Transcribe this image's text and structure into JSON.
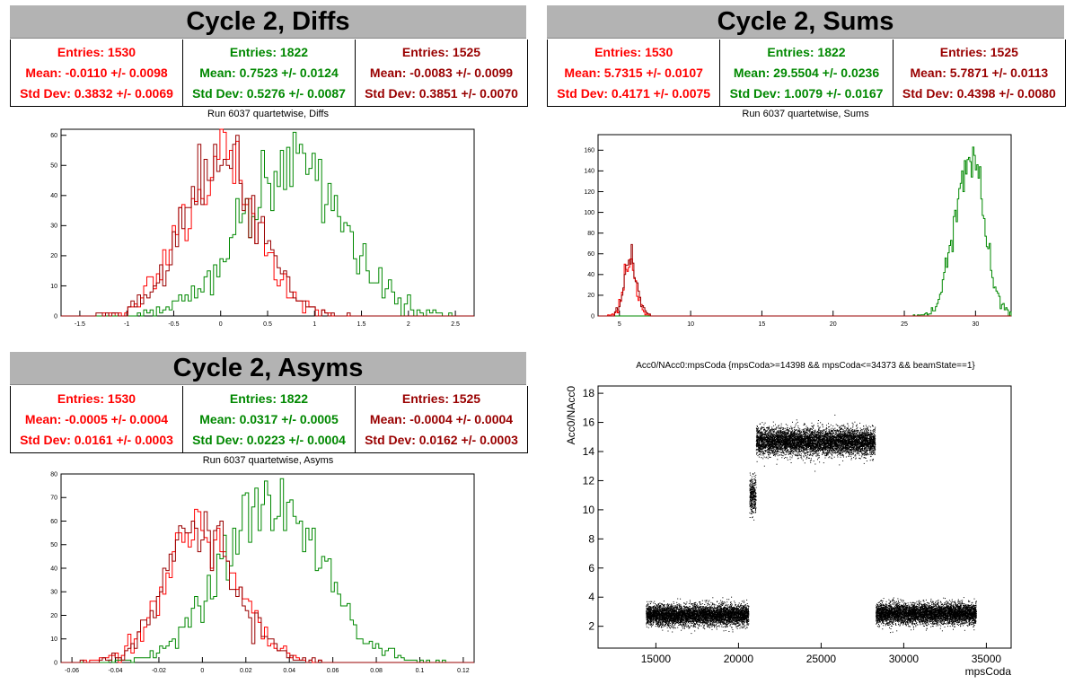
{
  "panels": {
    "diffs": {
      "header": "Cycle 2, Diffs",
      "stats": [
        {
          "entries": "Entries: 1530",
          "mean": "Mean: -0.0110 +/- 0.0098",
          "std": "Std Dev: 0.3832 +/- 0.0069",
          "color": "#ff0000"
        },
        {
          "entries": "Entries: 1822",
          "mean": "Mean: 0.7523 +/- 0.0124",
          "std": "Std Dev: 0.5276 +/- 0.0087",
          "color": "#008800"
        },
        {
          "entries": "Entries: 1525",
          "mean": "Mean: -0.0083 +/- 0.0099",
          "std": "Std Dev: 0.3851 +/- 0.0070",
          "color": "#990000"
        }
      ],
      "plot_title": "Run 6037 quartetwise, Diffs"
    },
    "sums": {
      "header": "Cycle 2, Sums",
      "stats": [
        {
          "entries": "Entries: 1530",
          "mean": "Mean: 5.7315 +/- 0.0107",
          "std": "Std Dev: 0.4171 +/- 0.0075",
          "color": "#ff0000"
        },
        {
          "entries": "Entries: 1822",
          "mean": "Mean: 29.5504 +/- 0.0236",
          "std": "Std Dev: 1.0079 +/- 0.0167",
          "color": "#008800"
        },
        {
          "entries": "Entries: 1525",
          "mean": "Mean: 5.7871 +/- 0.0113",
          "std": "Std Dev: 0.4398 +/- 0.0080",
          "color": "#990000"
        }
      ],
      "plot_title": "Run 6037 quartetwise, Sums"
    },
    "asyms": {
      "header": "Cycle 2, Asyms",
      "stats": [
        {
          "entries": "Entries: 1530",
          "mean": "Mean: -0.0005 +/- 0.0004",
          "std": "Std Dev: 0.0161 +/- 0.0003",
          "color": "#ff0000"
        },
        {
          "entries": "Entries: 1822",
          "mean": "Mean: 0.0317 +/- 0.0005",
          "std": "Std Dev: 0.0223 +/- 0.0004",
          "color": "#008800"
        },
        {
          "entries": "Entries: 1525",
          "mean": "Mean: -0.0004 +/- 0.0004",
          "std": "Std Dev: 0.0162 +/- 0.0003",
          "color": "#990000"
        }
      ],
      "plot_title": "Run 6037 quartetwise, Asyms"
    },
    "scatter": {
      "plot_title": "Acc0/NAcc0:mpsCoda {mpsCoda>=14398 && mpsCoda<=34373 && beamState==1}"
    }
  },
  "chart_data": [
    {
      "type": "histogram",
      "title": "Run 6037 quartetwise, Diffs",
      "xlim": [
        -1.7,
        2.7
      ],
      "ylim": [
        0,
        62
      ],
      "xticks": [
        -1.5,
        -1,
        -0.5,
        0,
        0.5,
        1,
        1.5,
        2,
        2.5
      ],
      "xtick_labels": [
        "-1.5",
        "-1",
        "-0.5",
        "0",
        "0.5",
        "1",
        "1.5",
        "2",
        "2.5"
      ],
      "yticks": [
        0,
        10,
        20,
        30,
        40,
        50,
        60
      ],
      "ytick_labels": [
        "0",
        "10",
        "20",
        "30",
        "40",
        "50",
        "60"
      ],
      "series": [
        {
          "color": "#ff0000",
          "entries": 1530,
          "mean": -0.011,
          "std": 0.3832,
          "peak": 60
        },
        {
          "color": "#008800",
          "entries": 1822,
          "mean": 0.7523,
          "std": 0.5276,
          "peak": 58
        },
        {
          "color": "#990000",
          "entries": 1525,
          "mean": -0.0083,
          "std": 0.3851,
          "peak": 58
        }
      ]
    },
    {
      "type": "histogram",
      "title": "Run 6037 quartetwise, Sums",
      "xlim": [
        3.5,
        32.5
      ],
      "ylim": [
        0,
        175
      ],
      "xticks": [
        5,
        10,
        15,
        20,
        25,
        30
      ],
      "xtick_labels": [
        "5",
        "10",
        "15",
        "20",
        "25",
        "30"
      ],
      "yticks": [
        0,
        20,
        40,
        60,
        80,
        100,
        120,
        140,
        160
      ],
      "ytick_labels": [
        "0",
        "20",
        "40",
        "60",
        "80",
        "100",
        "120",
        "140",
        "160"
      ],
      "series": [
        {
          "color": "#ff0000",
          "entries": 1530,
          "mean": 5.7315,
          "std": 0.4171,
          "peak": 60
        },
        {
          "color": "#008800",
          "entries": 1822,
          "mean": 29.5504,
          "std": 1.0079,
          "peak": 170
        },
        {
          "color": "#990000",
          "entries": 1525,
          "mean": 5.7871,
          "std": 0.4398,
          "peak": 62
        }
      ]
    },
    {
      "type": "histogram",
      "title": "Run 6037 quartetwise, Asyms",
      "xlim": [
        -0.065,
        0.125
      ],
      "ylim": [
        0,
        80
      ],
      "xticks": [
        -0.06,
        -0.04,
        -0.02,
        0,
        0.02,
        0.04,
        0.06,
        0.08,
        0.1,
        0.12
      ],
      "xtick_labels": [
        "-0.06",
        "-0.04",
        "-0.02",
        "0",
        "0.02",
        "0.04",
        "0.06",
        "0.08",
        "0.1",
        "0.12"
      ],
      "yticks": [
        0,
        10,
        20,
        30,
        40,
        50,
        60,
        70,
        80
      ],
      "ytick_labels": [
        "0",
        "10",
        "20",
        "30",
        "40",
        "50",
        "60",
        "70",
        "80"
      ],
      "series": [
        {
          "color": "#ff0000",
          "entries": 1530,
          "mean": -0.0005,
          "std": 0.0161,
          "peak": 68
        },
        {
          "color": "#008800",
          "entries": 1822,
          "mean": 0.0317,
          "std": 0.0223,
          "peak": 77
        },
        {
          "color": "#990000",
          "entries": 1525,
          "mean": -0.0004,
          "std": 0.0162,
          "peak": 65
        }
      ]
    },
    {
      "type": "scatter",
      "title": "Acc0/NAcc0:mpsCoda {mpsCoda>=14398 && mpsCoda<=34373 && beamState==1}",
      "xlabel": "mpsCoda",
      "ylabel": "Acc0/NAcc0",
      "xlim": [
        11500,
        36500
      ],
      "ylim": [
        0.5,
        18.5
      ],
      "xticks": [
        15000,
        20000,
        25000,
        30000,
        35000
      ],
      "xtick_labels": [
        "15000",
        "20000",
        "25000",
        "30000",
        "35000"
      ],
      "yticks": [
        2,
        4,
        6,
        8,
        10,
        12,
        14,
        16,
        18
      ],
      "ytick_labels": [
        "2",
        "4",
        "6",
        "8",
        "10",
        "12",
        "14",
        "16",
        "18"
      ],
      "clusters": [
        {
          "x_range": [
            14398,
            20600
          ],
          "y_center": 2.8,
          "y_spread": 0.35
        },
        {
          "x_range": [
            20650,
            21050
          ],
          "y_center": 11.0,
          "y_spread": 0.6
        },
        {
          "x_range": [
            21050,
            28250
          ],
          "y_center": 14.7,
          "y_spread": 0.45
        },
        {
          "x_range": [
            28300,
            34373
          ],
          "y_center": 2.9,
          "y_spread": 0.35
        }
      ]
    }
  ]
}
